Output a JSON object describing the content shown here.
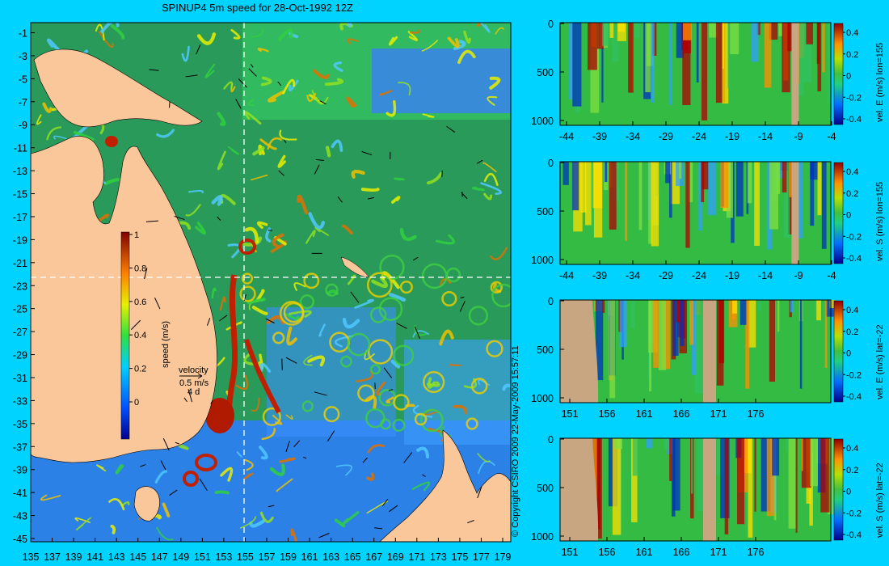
{
  "map": {
    "title": "SPINUP4 5m speed for 28-Oct-1992 12Z",
    "lat_labels": [
      "-1",
      "-3",
      "-5",
      "-7",
      "-9",
      "-11",
      "-13",
      "-15",
      "-17",
      "-19",
      "-21",
      "-23",
      "-25",
      "-27",
      "-29",
      "-31",
      "-33",
      "-35",
      "-37",
      "-39",
      "-41",
      "-43",
      "-45"
    ],
    "lon_labels": [
      "135",
      "137",
      "139",
      "141",
      "143",
      "145",
      "147",
      "149",
      "151",
      "153",
      "155",
      "157",
      "159",
      "161",
      "163",
      "165",
      "167",
      "169",
      "171",
      "173",
      "175",
      "177",
      "179"
    ],
    "colorbar": {
      "label": "speed (m/s)",
      "ticks": [
        "1",
        "0.8",
        "0.6",
        "0.4",
        "0.2",
        "0"
      ]
    },
    "velocity_key": {
      "title": "velocity",
      "speed": "0.5 m/s",
      "days": "4 d"
    },
    "crosshair": {
      "lon": 155,
      "lat": -22
    }
  },
  "copyright": "© Copyright CSIRO 2009  22-May-2009 15:57:11",
  "panels": [
    {
      "label": "vel. E (m/s) lon=155",
      "y_ticks": [
        "0",
        "500",
        "1000"
      ],
      "x_ticks": [
        "-44",
        "-39",
        "-34",
        "-29",
        "-24",
        "-19",
        "-14",
        "-9",
        "-4"
      ],
      "cbar_ticks": [
        "0.4",
        "0.2",
        "0",
        "-0.2",
        "-0.4"
      ]
    },
    {
      "label": "vel. S (m/s) lon=155",
      "y_ticks": [
        "0",
        "500",
        "1000"
      ],
      "x_ticks": [
        "-44",
        "-39",
        "-34",
        "-29",
        "-24",
        "-19",
        "-14",
        "-9",
        "-4"
      ],
      "cbar_ticks": [
        "0.4",
        "0.2",
        "0",
        "-0.2",
        "-0.4"
      ]
    },
    {
      "label": "vel. E (m/s) lat=-22",
      "y_ticks": [
        "0",
        "500",
        "1000"
      ],
      "x_ticks": [
        "151",
        "156",
        "161",
        "166",
        "171",
        "176"
      ],
      "cbar_ticks": [
        "0.4",
        "0.2",
        "0",
        "-0.2",
        "-0.4"
      ]
    },
    {
      "label": "vel. S (m/s) lat=-22",
      "y_ticks": [
        "0",
        "500",
        "1000"
      ],
      "x_ticks": [
        "151",
        "156",
        "161",
        "166",
        "171",
        "176"
      ],
      "cbar_ticks": [
        "0.4",
        "0.2",
        "0",
        "-0.2",
        "-0.4"
      ]
    }
  ],
  "colors": {
    "background": "#00d3ff",
    "ocean_slow": "#2a6bff",
    "ocean_mid": "#33cc44",
    "ocean_fast": "#f2e400",
    "ocean_jet": "#c02000",
    "land": "#f9c79a",
    "section_land": "#c8a682",
    "section_bg": "#33bb44"
  }
}
